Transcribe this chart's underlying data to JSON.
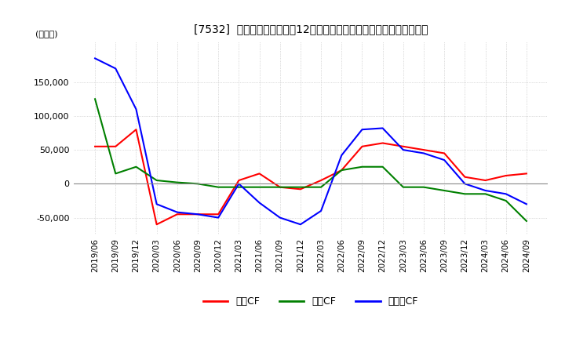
{
  "title": "[7532]  キャッシュフローの12か月移動合計の対前年同期増減額の推移",
  "ylabel": "(百万円)",
  "ylim": [
    -75000,
    210000
  ],
  "yticks": [
    -50000,
    0,
    50000,
    100000,
    150000
  ],
  "legend_labels": [
    "営業CF",
    "投資CF",
    "フリーCF"
  ],
  "legend_colors": [
    "#ff0000",
    "#008000",
    "#0000ff"
  ],
  "dates": [
    "2019/06",
    "2019/09",
    "2019/12",
    "2020/03",
    "2020/06",
    "2020/09",
    "2020/12",
    "2021/03",
    "2021/06",
    "2021/09",
    "2021/12",
    "2022/03",
    "2022/06",
    "2022/09",
    "2022/12",
    "2023/03",
    "2023/06",
    "2023/09",
    "2023/12",
    "2024/03",
    "2024/06",
    "2024/09"
  ],
  "operating_cf": [
    55000,
    55000,
    80000,
    -60000,
    -45000,
    -45000,
    -45000,
    5000,
    15000,
    -5000,
    -8000,
    5000,
    20000,
    55000,
    60000,
    55000,
    50000,
    45000,
    10000,
    5000,
    12000,
    15000
  ],
  "investing_cf": [
    125000,
    15000,
    25000,
    5000,
    2000,
    0,
    -5000,
    -5000,
    -5000,
    -5000,
    -5000,
    -5000,
    20000,
    25000,
    25000,
    -5000,
    -5000,
    -10000,
    -15000,
    -15000,
    -25000,
    -55000
  ],
  "free_cf": [
    185000,
    170000,
    110000,
    -30000,
    -42000,
    -45000,
    -50000,
    0,
    -28000,
    -50000,
    -60000,
    -40000,
    42000,
    80000,
    82000,
    50000,
    45000,
    35000,
    0,
    -10000,
    -15000,
    -30000
  ],
  "background_color": "#ffffff",
  "grid_color": "#bbbbbb",
  "line_width": 1.5
}
